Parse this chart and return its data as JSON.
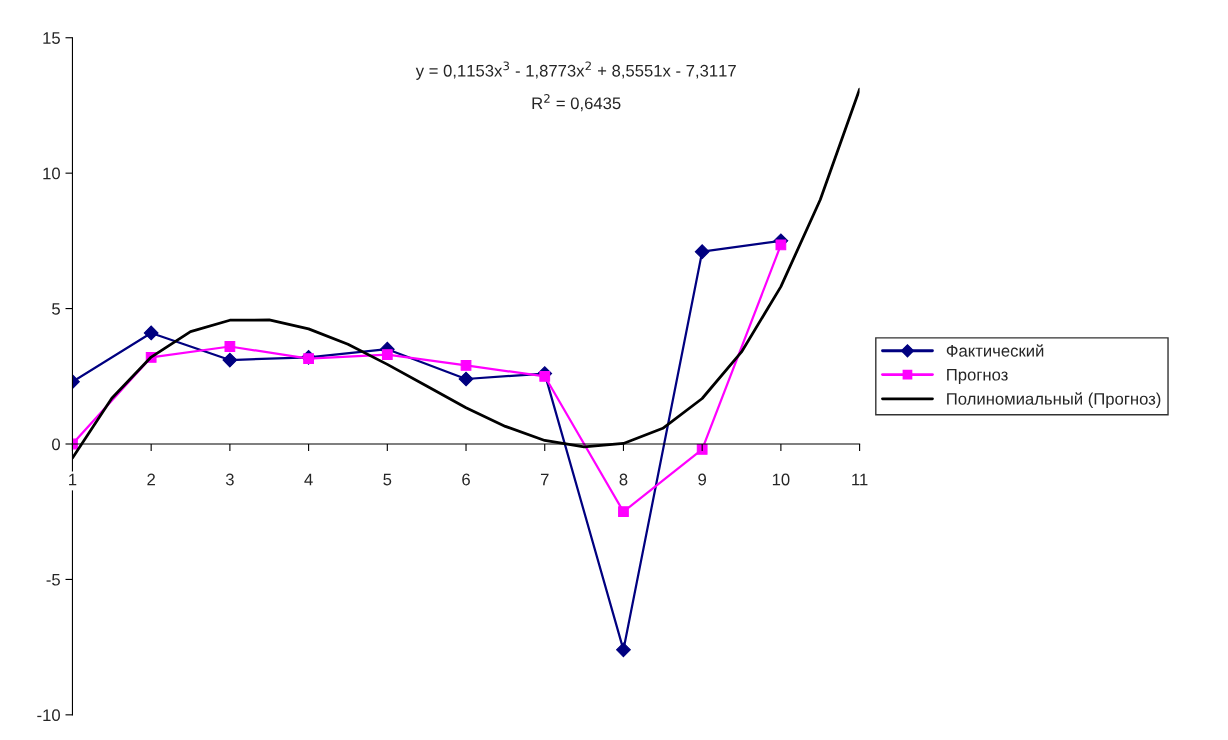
{
  "chart_data": {
    "type": "line",
    "xlim": [
      1,
      11
    ],
    "xticks": [
      1,
      2,
      3,
      4,
      5,
      6,
      7,
      8,
      9,
      10,
      11
    ],
    "ylim": [
      -10,
      15
    ],
    "yticks": [
      -10,
      -5,
      0,
      5,
      10,
      15
    ],
    "grid": false,
    "legend": "right",
    "series": [
      {
        "name": "Фактический",
        "color": "#000080",
        "marker": "diamond",
        "x": [
          1,
          2,
          3,
          4,
          5,
          6,
          7,
          8,
          9,
          10
        ],
        "values": [
          2.3,
          4.1,
          3.1,
          3.2,
          3.5,
          2.4,
          2.6,
          -7.6,
          7.1,
          7.5
        ]
      },
      {
        "name": "Прогноз",
        "color": "#ff00ff",
        "marker": "square",
        "x": [
          1,
          2,
          3,
          4,
          5,
          6,
          7,
          8,
          9,
          10
        ],
        "values": [
          0,
          3.2,
          3.6,
          3.15,
          3.3,
          2.9,
          2.5,
          -2.5,
          -0.2,
          7.35
        ]
      },
      {
        "name": "Полиномиальный (Прогноз)",
        "color": "#000000",
        "marker": "none",
        "x": [
          1,
          1.5,
          2,
          2.5,
          3,
          3.5,
          4,
          4.5,
          5,
          5.5,
          6,
          6.5,
          7,
          7.5,
          8,
          8.5,
          9,
          9.5,
          10,
          10.5,
          11
        ],
        "values": [
          -0.52,
          1.69,
          3.21,
          4.15,
          4.57,
          4.58,
          4.25,
          3.68,
          2.94,
          2.14,
          1.34,
          0.65,
          0.13,
          -0.11,
          0.02,
          0.58,
          1.68,
          3.4,
          5.81,
          9.02,
          13.1
        ]
      }
    ],
    "annotations": [
      "y = 0,1153x$^{3}$ - 1,8773x$^{2}$ + 8,5551x - 7,3117",
      "R$^{2}$ = 0,6435"
    ]
  }
}
